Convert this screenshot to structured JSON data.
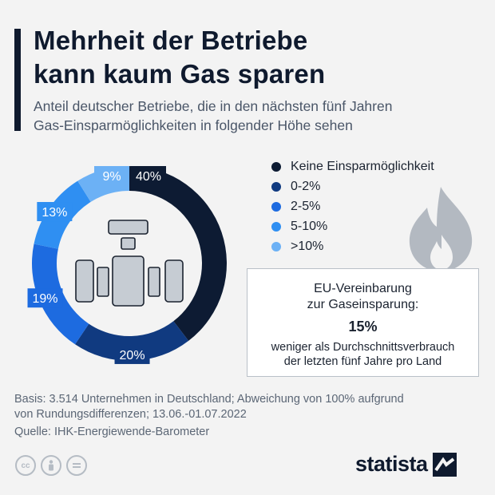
{
  "header": {
    "title_line1": "Mehrheit der Betriebe",
    "title_line2": "kann kaum Gas sparen",
    "subtitle_line1": "Anteil deutscher Betriebe, die in den nächsten fünf Jahren",
    "subtitle_line2": "Gas-Einsparmöglichkeiten in folgender Höhe sehen"
  },
  "chart_data": {
    "type": "pie",
    "donut": true,
    "categories": [
      "Keine Einsparmöglichkeit",
      "0-2%",
      "2-5%",
      "5-10%",
      ">10%"
    ],
    "values": [
      40,
      20,
      19,
      13,
      9
    ],
    "labels": [
      "40%",
      "20%",
      "19%",
      "13%",
      "9%"
    ],
    "colors": [
      "#0d1b33",
      "#103a80",
      "#1d6be0",
      "#2f8ff2",
      "#6cb1f5"
    ],
    "legend_position": "right"
  },
  "legend": [
    {
      "label": "Keine Einsparmöglichkeit",
      "color": "#0d1b33"
    },
    {
      "label": "0-2%",
      "color": "#103a80"
    },
    {
      "label": "2-5%",
      "color": "#1d6be0"
    },
    {
      "label": "5-10%",
      "color": "#2f8ff2"
    },
    {
      "label": ">10%",
      "color": "#6cb1f5"
    }
  ],
  "info_box": {
    "title_line1": "EU-Vereinbarung",
    "title_line2": "zur Gaseinsparung:",
    "value": "15%",
    "desc_line1": "weniger als Durchschnittsverbrauch",
    "desc_line2": "der letzten fünf Jahre pro Land"
  },
  "footer": {
    "note_line1": "Basis: 3.514 Unternehmen in Deutschland; Abweichung von 100% aufgrund",
    "note_line2": "von Rundungsdifferenzen; 13.06.-01.07.2022",
    "source": "Quelle: IHK-Energiewende-Barometer",
    "cc_icons": [
      "cc-icon",
      "person-icon",
      "equals-icon"
    ],
    "logo": "statista"
  },
  "icons": {
    "center": "building-machine-icon",
    "decor": "gas-flame-icon"
  }
}
